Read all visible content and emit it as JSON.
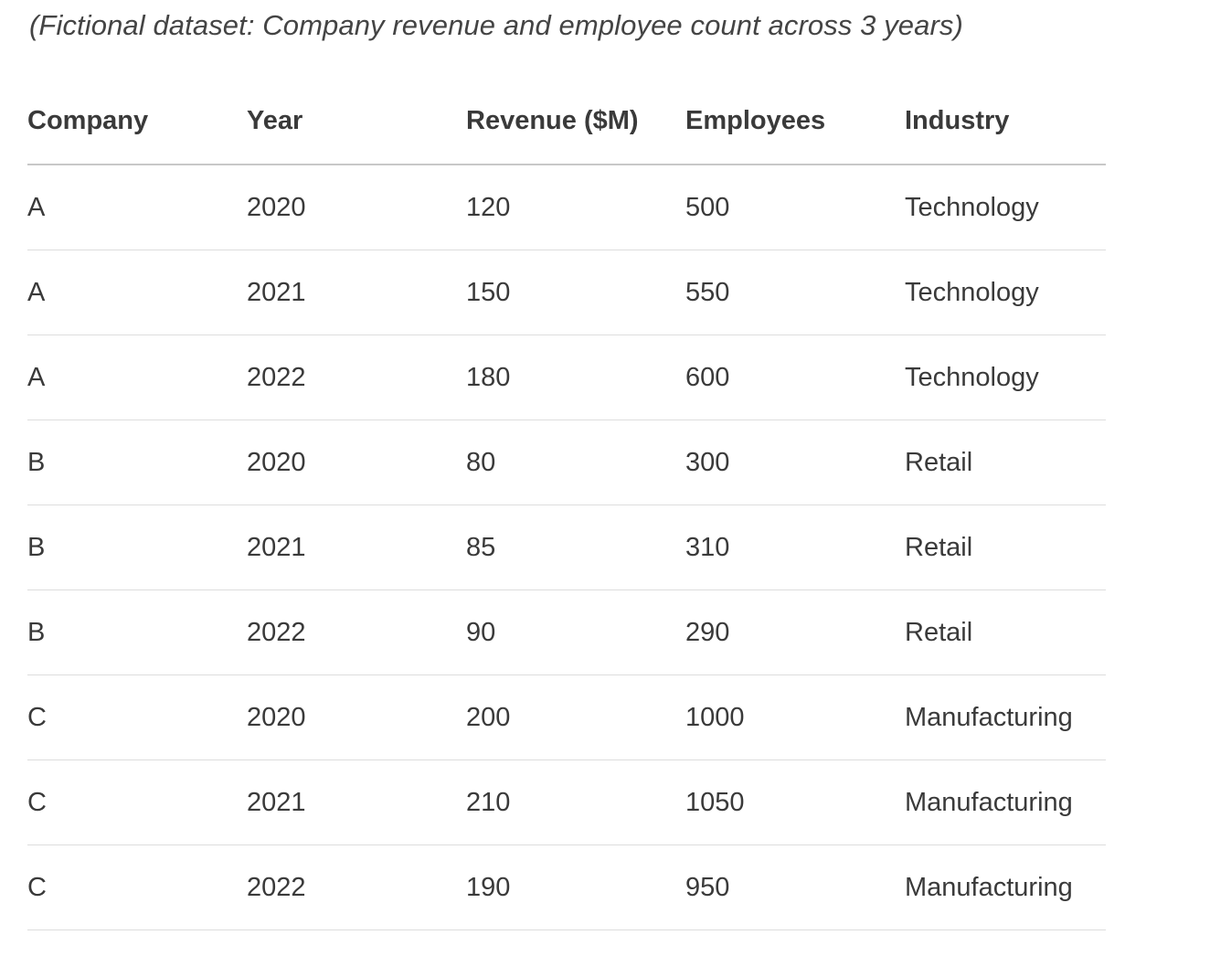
{
  "caption": "(Fictional dataset: Company revenue and employee count across 3 years)",
  "table": {
    "headers": [
      "Company",
      "Year",
      "Revenue ($M)",
      "Employees",
      "Industry"
    ],
    "rows": [
      [
        "A",
        "2020",
        "120",
        "500",
        "Technology"
      ],
      [
        "A",
        "2021",
        "150",
        "550",
        "Technology"
      ],
      [
        "A",
        "2022",
        "180",
        "600",
        "Technology"
      ],
      [
        "B",
        "2020",
        "80",
        "300",
        "Retail"
      ],
      [
        "B",
        "2021",
        "85",
        "310",
        "Retail"
      ],
      [
        "B",
        "2022",
        "90",
        "290",
        "Retail"
      ],
      [
        "C",
        "2020",
        "200",
        "1000",
        "Manufacturing"
      ],
      [
        "C",
        "2021",
        "210",
        "1050",
        "Manufacturing"
      ],
      [
        "C",
        "2022",
        "190",
        "950",
        "Manufacturing"
      ]
    ]
  },
  "colors": {
    "text": "#3a3a3a",
    "header_rule": "#c8c8c8",
    "row_rule": "#dddddd",
    "background": "#ffffff"
  }
}
